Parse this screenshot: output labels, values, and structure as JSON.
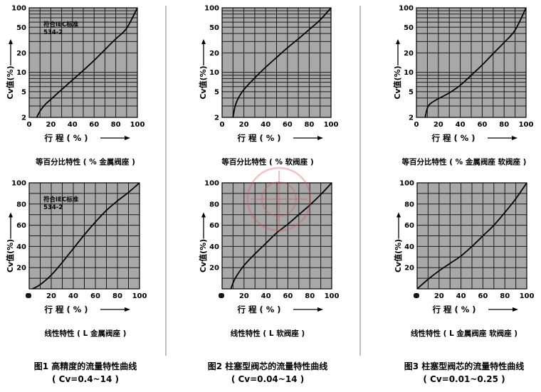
{
  "colors": {
    "plot_bg": "#a8a8a8",
    "grid": "#1a1a1a",
    "curve": "#000000",
    "divider": "#808080",
    "watermark": "#e05050"
  },
  "figures": [
    {
      "caption": "图1 高精度的流量特性曲线",
      "range": "( Cv=0.4~14 )"
    },
    {
      "caption": "图2 柱塞型阀芯的流量特性曲线",
      "range": "( Cv=0.04~14 )"
    },
    {
      "caption": "图3 柱塞型阀芯的流量特性曲线",
      "range": "( Cv=0.01~0.25 )"
    }
  ],
  "chart_data": [
    {
      "type": "line",
      "scale": "log",
      "xlabel": "行 程 ( % )",
      "ylabel": "Cv值(%)",
      "subtitle": "等百分比特性 ( % 金属阀座 )",
      "note": [
        "符合IEC标准",
        "534-2"
      ],
      "xlim": [
        0,
        100
      ],
      "ylim": [
        2,
        100
      ],
      "xticks": [
        0,
        20,
        40,
        60,
        80,
        100
      ],
      "yticks": [
        2,
        5,
        10,
        20,
        50,
        100
      ],
      "x": [
        7,
        10,
        15,
        20,
        30,
        40,
        50,
        60,
        70,
        80,
        90,
        100
      ],
      "y": [
        2,
        2.5,
        3.2,
        3.8,
        5.4,
        7.6,
        10.7,
        15.3,
        22.5,
        33,
        48,
        100
      ]
    },
    {
      "type": "line",
      "scale": "log",
      "xlabel": "行 程 ( % )",
      "ylabel": "Cv值(%)",
      "subtitle": "等百分比特性 ( % 软阀座 )",
      "note": [],
      "xlim": [
        0,
        100
      ],
      "ylim": [
        2,
        100
      ],
      "xticks": [
        0,
        20,
        40,
        60,
        80,
        100
      ],
      "yticks": [
        2,
        5,
        10,
        20,
        50,
        100
      ],
      "x": [
        10,
        12,
        15,
        20,
        30,
        40,
        50,
        60,
        70,
        80,
        90,
        100
      ],
      "y": [
        2,
        3,
        4,
        5.4,
        8.2,
        12,
        17,
        24,
        33,
        46,
        65,
        100
      ]
    },
    {
      "type": "line",
      "scale": "log",
      "xlabel": "行 程 ( % )",
      "ylabel": "Cv值(%)",
      "subtitle": "等百分比特性 ( % 金属阀座 软阀座 )",
      "note": [],
      "xlim": [
        0,
        100
      ],
      "ylim": [
        2,
        100
      ],
      "xticks": [
        0,
        20,
        40,
        60,
        80,
        100
      ],
      "yticks": [
        2,
        5,
        10,
        20,
        50,
        100
      ],
      "x": [
        8,
        10,
        13,
        20,
        30,
        40,
        50,
        60,
        70,
        80,
        90,
        100
      ],
      "y": [
        2,
        2.8,
        3.3,
        3.9,
        4.8,
        6.3,
        9,
        13,
        19.5,
        29,
        45,
        100
      ]
    },
    {
      "type": "line",
      "scale": "linear",
      "xlabel": "行 程 ( % )",
      "ylabel": "Cv值(%)",
      "subtitle": "线性特性 ( L 金属阀座 )",
      "note": [
        "符合IEC标准",
        "534-2"
      ],
      "xlim": [
        0,
        100
      ],
      "ylim": [
        0,
        100
      ],
      "xticks": [
        0,
        20,
        40,
        60,
        80,
        100
      ],
      "yticks": [
        20,
        40,
        60,
        80,
        100
      ],
      "x": [
        3,
        10,
        20,
        30,
        40,
        50,
        60,
        70,
        80,
        90,
        100
      ],
      "y": [
        0,
        4,
        13,
        25,
        38,
        51,
        63,
        74,
        83,
        91,
        100
      ]
    },
    {
      "type": "line",
      "scale": "linear",
      "xlabel": "行 程 ( % )",
      "ylabel": "Cv值(%)",
      "subtitle": "线性特性 ( L 软阀座 )",
      "note": [],
      "xlim": [
        0,
        100
      ],
      "ylim": [
        0,
        100
      ],
      "xticks": [
        0,
        20,
        40,
        60,
        80,
        100
      ],
      "yticks": [
        20,
        40,
        60,
        80,
        100
      ],
      "x": [
        8,
        12,
        20,
        30,
        40,
        50,
        60,
        70,
        80,
        90,
        100
      ],
      "y": [
        0,
        10,
        22,
        33,
        43,
        53,
        61,
        70,
        79,
        89,
        100
      ]
    },
    {
      "type": "line",
      "scale": "linear",
      "xlabel": "行 程 ( % )",
      "ylabel": "Cv值(%)",
      "subtitle": "线性特性 ( L 金属阀座 软阀座 )",
      "note": [],
      "xlim": [
        0,
        100
      ],
      "ylim": [
        0,
        100
      ],
      "xticks": [
        0,
        20,
        40,
        60,
        80,
        100
      ],
      "yticks": [
        20,
        40,
        60,
        80,
        100
      ],
      "x": [
        0,
        10,
        20,
        30,
        40,
        50,
        60,
        70,
        80,
        90,
        100
      ],
      "y": [
        0,
        9,
        17,
        24,
        31,
        40,
        50,
        60,
        72,
        85,
        100
      ]
    }
  ]
}
